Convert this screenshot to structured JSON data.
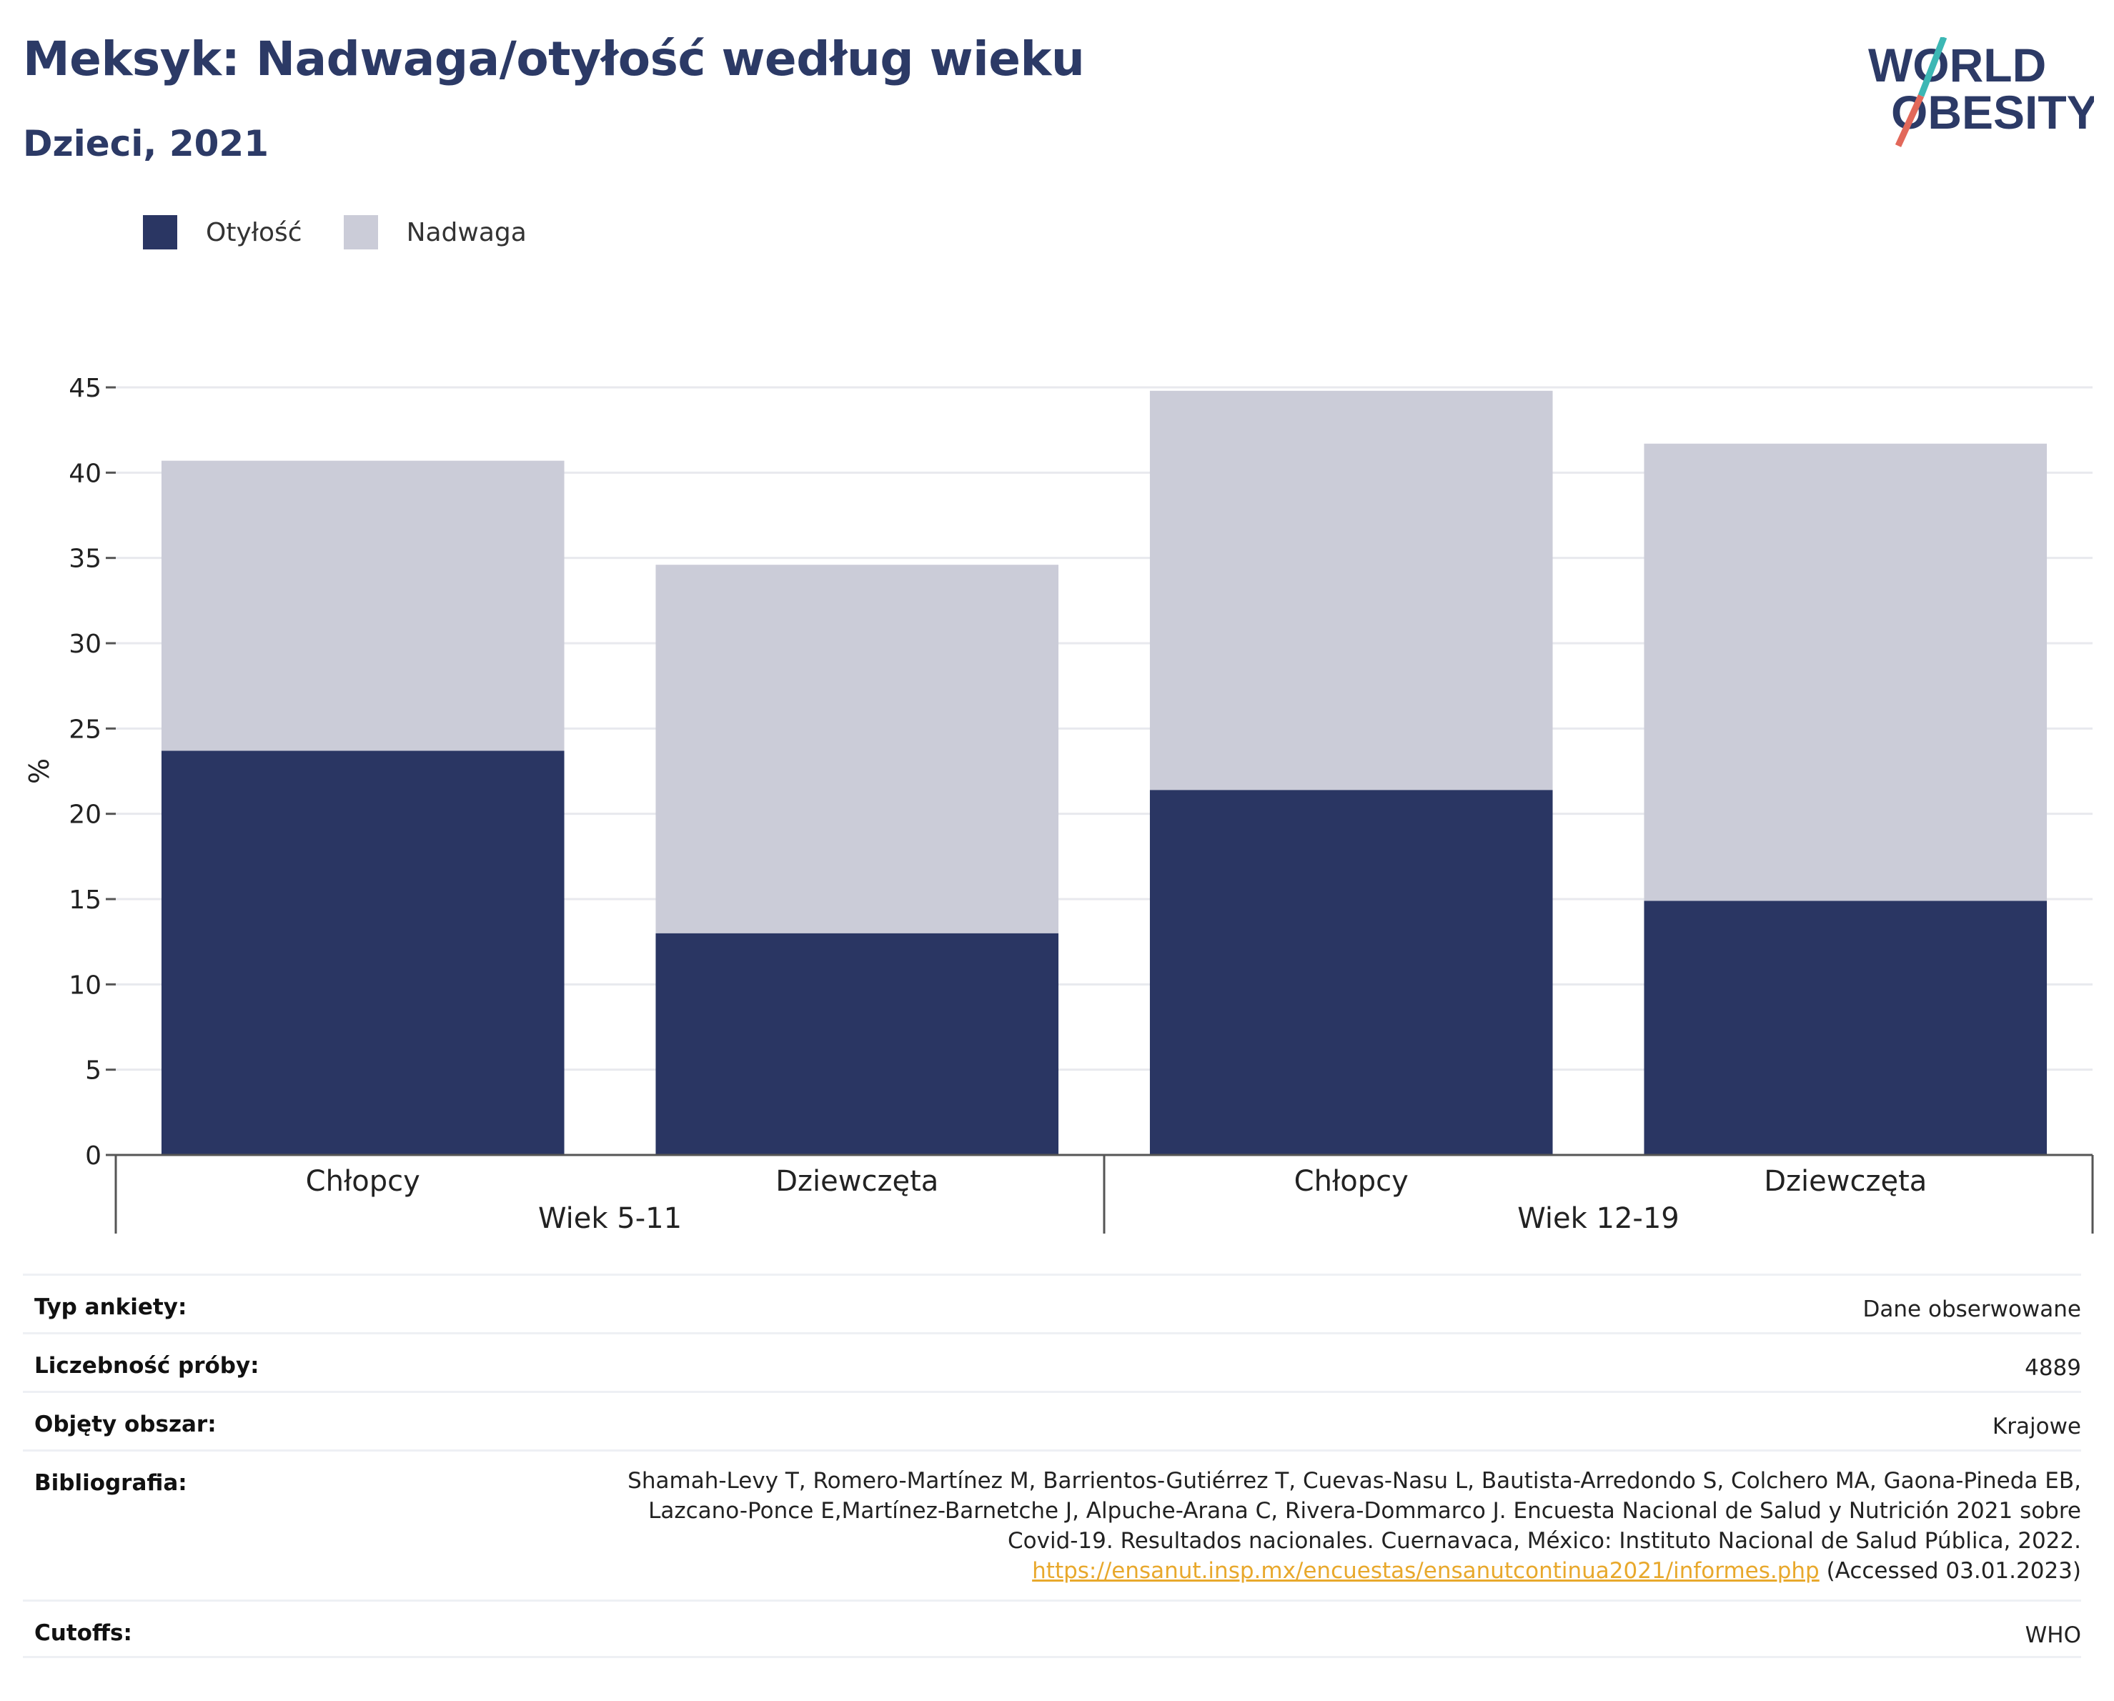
{
  "title": "Meksyk: Nadwaga/otyłość według wieku",
  "subtitle": "Dzieci, 2021",
  "logo": {
    "line1": "WORLD",
    "line2": "OBESITY"
  },
  "legend": [
    {
      "label": "Otyłość",
      "color": "#2a3663"
    },
    {
      "label": "Nadwaga",
      "color": "#cbccd8"
    }
  ],
  "chart_data": {
    "type": "bar",
    "stacked": true,
    "ylabel": "%",
    "ylim": [
      0,
      45
    ],
    "yticks": [
      0,
      5,
      10,
      15,
      20,
      25,
      30,
      35,
      40,
      45
    ],
    "grid": true,
    "categories": [
      "Chłopcy",
      "Dziewczęta",
      "Chłopcy",
      "Dziewczęta"
    ],
    "groups": [
      {
        "label": "Wiek 5-11",
        "span": [
          0,
          1
        ]
      },
      {
        "label": "Wiek 12-19",
        "span": [
          2,
          3
        ]
      }
    ],
    "series": [
      {
        "name": "Otyłość",
        "color": "#2a3663",
        "values": [
          23.7,
          13.0,
          21.4,
          14.9
        ]
      },
      {
        "name": "Nadwaga",
        "color": "#cbccd8",
        "values": [
          17.0,
          21.6,
          23.4,
          26.8
        ]
      }
    ]
  },
  "info": {
    "survey_type_label": "Typ ankiety:",
    "survey_type_value": "Dane obserwowane",
    "sample_size_label": "Liczebność próby:",
    "sample_size_value": "4889",
    "area_label": "Objęty obszar:",
    "area_value": "Krajowe",
    "bibliography_label": "Bibliografia:",
    "bibliography_line1": "Shamah-Levy T, Romero-Martínez M, Barrientos-Gutiérrez T, Cuevas-Nasu L, Bautista-Arredondo S, Colchero MA, Gaona-Pineda EB,",
    "bibliography_line2": "Lazcano-Ponce E,Martínez-Barnetche J, Alpuche-Arana C, Rivera-Dommarco J. Encuesta Nacional de Salud y Nutrición 2021 sobre",
    "bibliography_line3": "Covid-19. Resultados nacionales. Cuernavaca, México: Instituto Nacional de Salud Pública, 2022.",
    "bibliography_link": "https://ensanut.insp.mx/encuestas/ensanutcontinua2021/informes.php",
    "bibliography_accessed": " (Accessed 03.01.2023)",
    "cutoffs_label": "Cutoffs:",
    "cutoffs_value": "WHO"
  }
}
